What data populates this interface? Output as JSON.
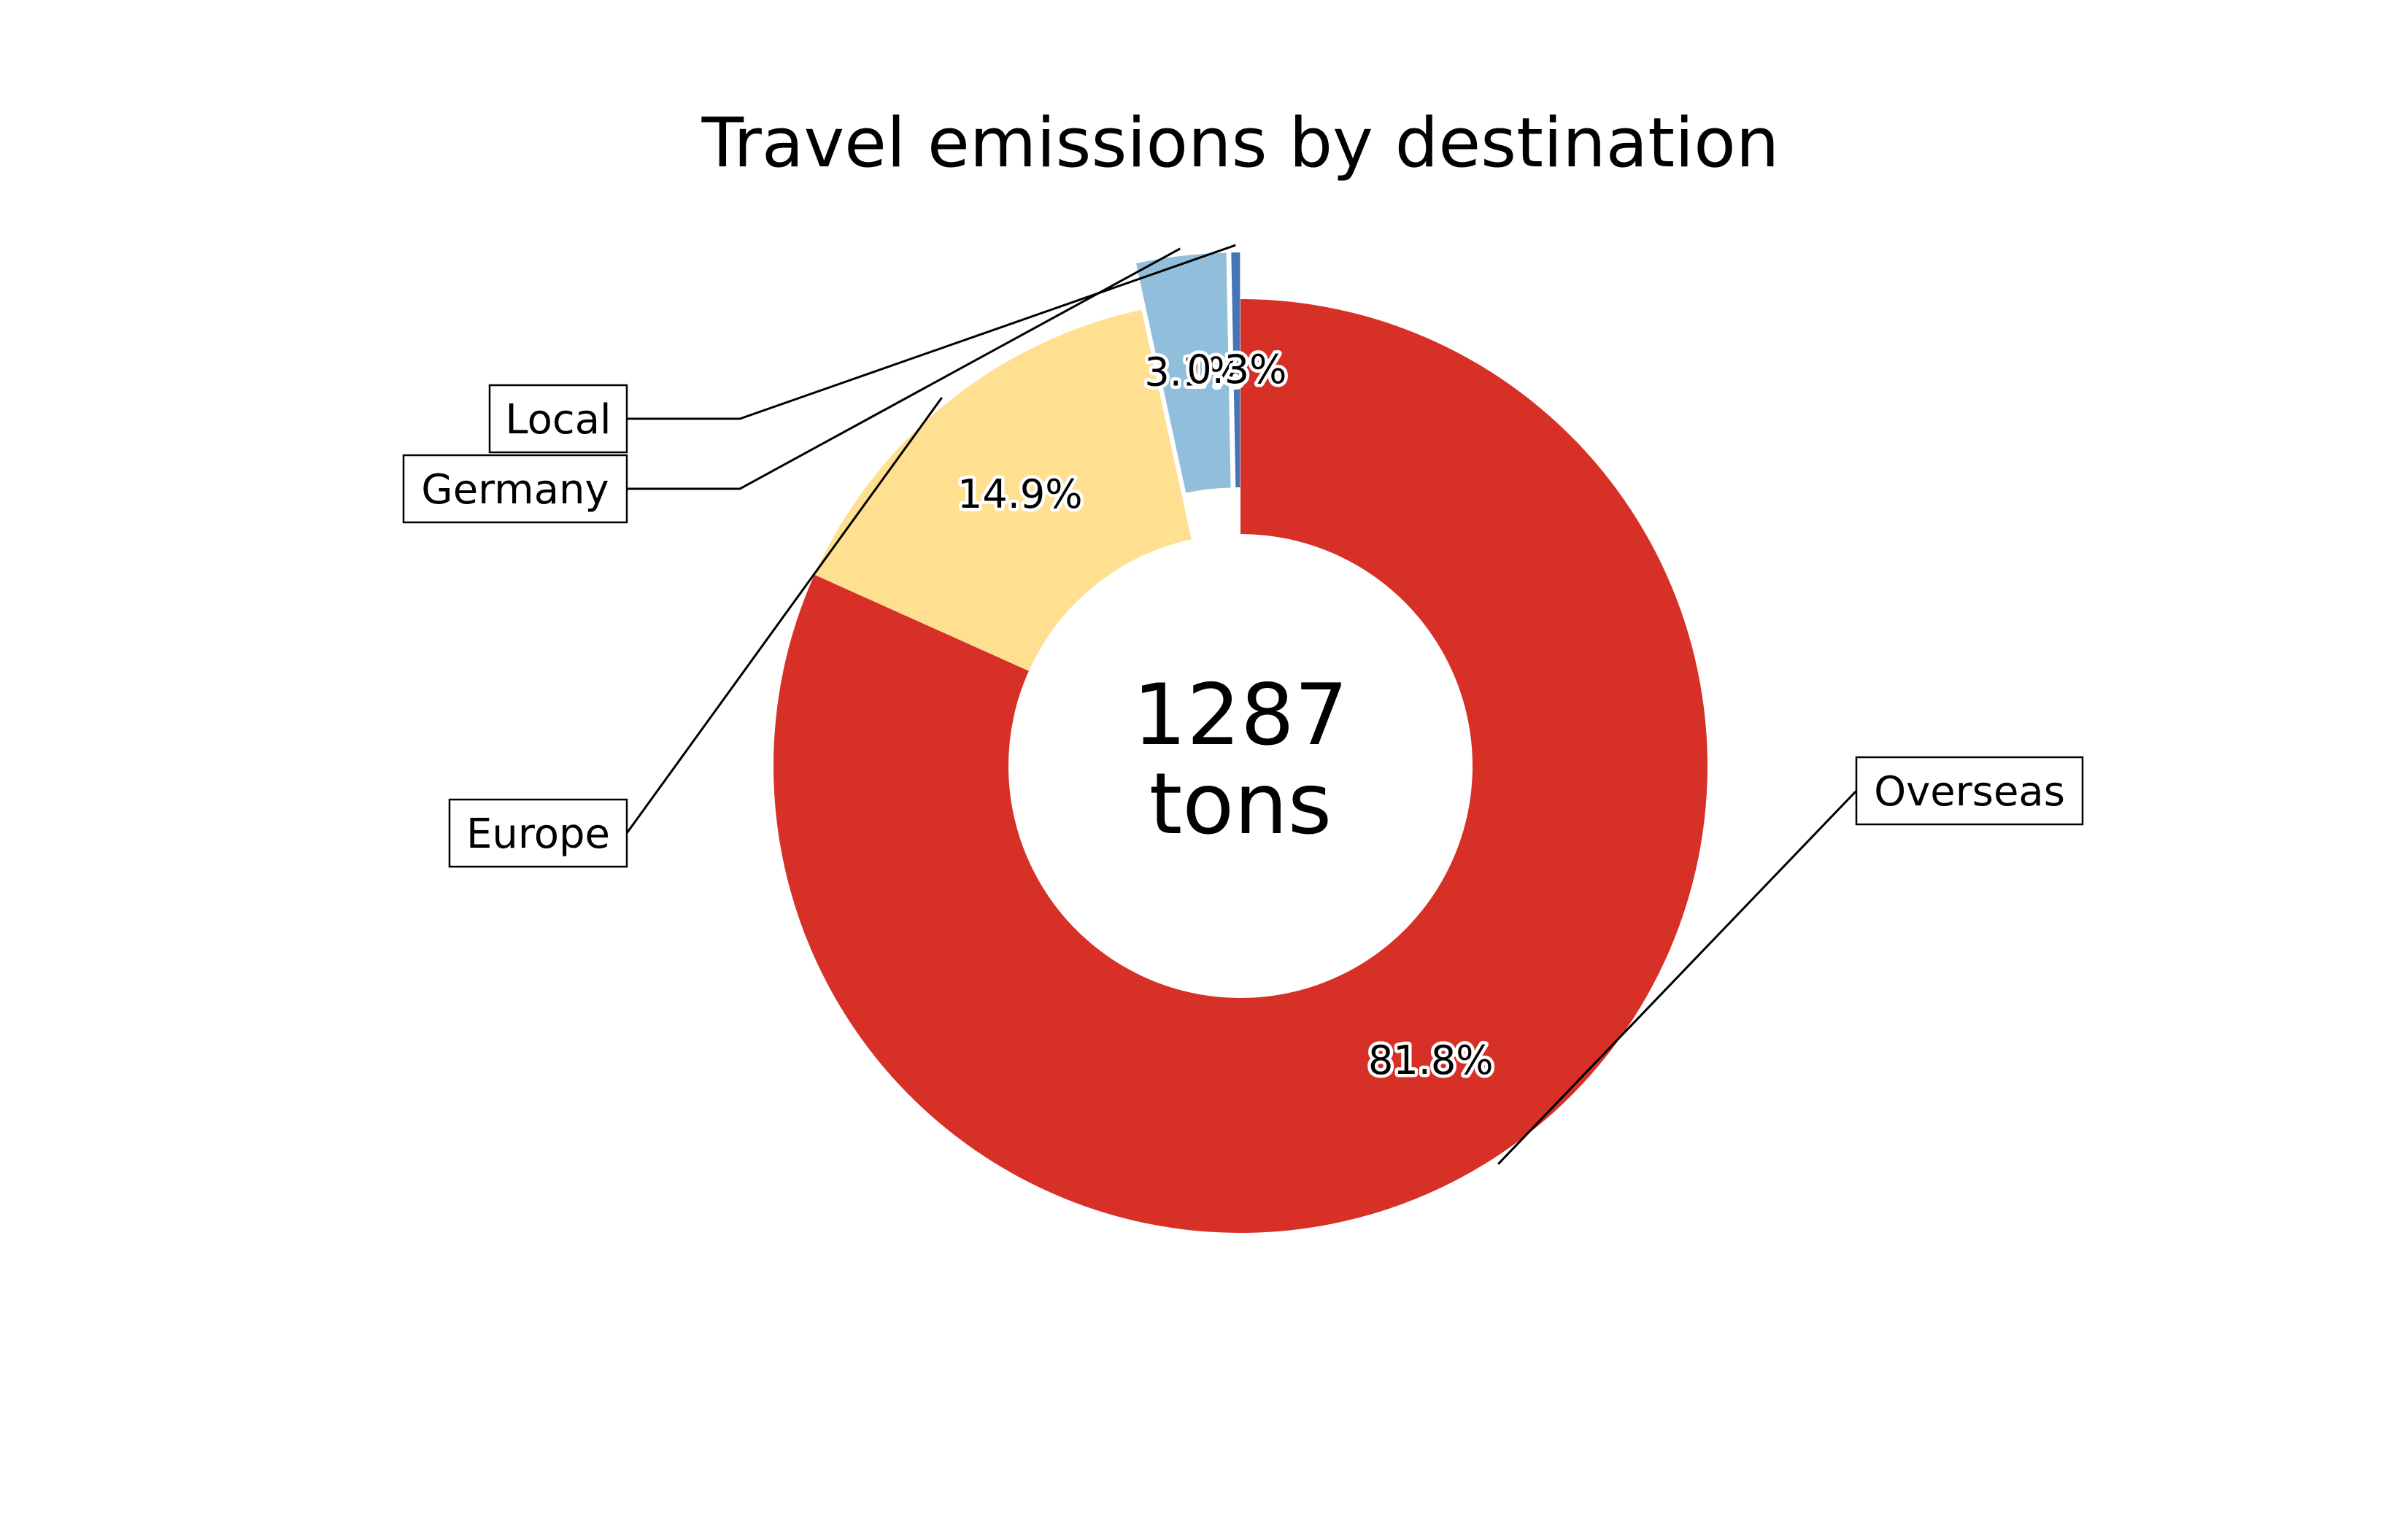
{
  "chart_data": {
    "type": "pie",
    "variant": "donut",
    "title": "Travel emissions by destination",
    "center_text": [
      "1287",
      "tons"
    ],
    "start_angle_deg": 90,
    "direction": "clockwise",
    "slices": [
      {
        "name": "Overseas",
        "value": 81.8,
        "label": "81.8%",
        "color": "#d73027",
        "exploded": false
      },
      {
        "name": "Europe",
        "value": 14.9,
        "label": "14.9%",
        "color": "#fee090",
        "exploded": false
      },
      {
        "name": "Germany",
        "value": 3.1,
        "label": "3.1%",
        "color": "#91bfdb",
        "exploded": true
      },
      {
        "name": "Local",
        "value": 0.3,
        "label": "0.3%",
        "color": "#4575b4",
        "exploded": true
      }
    ]
  }
}
